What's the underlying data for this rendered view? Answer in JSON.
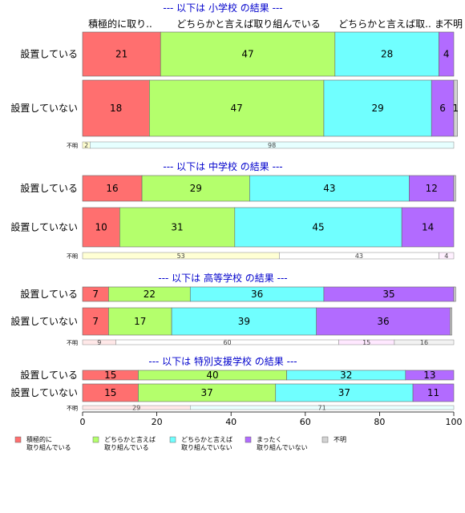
{
  "chart_data": {
    "type": "bar",
    "orientation": "horizontal",
    "stacked": true,
    "xlim": [
      0,
      100
    ],
    "x_ticks": [
      "0",
      "20",
      "40",
      "60",
      "80",
      "100"
    ],
    "legend_position": "bottom",
    "colors": {
      "積極的に取り組んでいる": "#ff6f6f",
      "どちらかと言えば取り組んでいる": "#b4ff6c",
      "どちらかと言えば取り組んでいない": "#70ffff",
      "まったく取り組んでいない": "#b26bff",
      "不明": "#d3d3d3"
    },
    "top_header": [
      "積極的に取り..",
      "どちらかと言えば取り組んでいる",
      "どちらかと言えば取..",
      "ま",
      "不明"
    ],
    "legend": [
      {
        "key": "積極的に取り組んでいる",
        "line1": "積極的に",
        "line2": "取り組んでいる"
      },
      {
        "key": "どちらかと言えば取り組んでいる",
        "line1": "どちらかと言えば",
        "line2": "取り組んでいる"
      },
      {
        "key": "どちらかと言えば取り組んでいない",
        "line1": "どちらかと言えば",
        "line2": "取り組んでいない"
      },
      {
        "key": "まったく取り組んでいない",
        "line1": "まったく",
        "line2": "取り組んでいない"
      },
      {
        "key": "不明",
        "line1": "不明",
        "line2": ""
      }
    ],
    "panels": [
      {
        "title": "--- 以下は 小学校 の結果 ---",
        "rows": [
          {
            "label": "設置している",
            "values": [
              21,
              47,
              28,
              4,
              0
            ],
            "value_labels": [
              "21",
              "47",
              "28",
              "4",
              ""
            ]
          },
          {
            "label": "設置していない",
            "values": [
              18,
              47,
              29,
              6,
              1
            ],
            "value_labels": [
              "18",
              "47",
              "29",
              "6",
              "1"
            ]
          }
        ],
        "unknown": {
          "label": "不明",
          "values": [
            2,
            98
          ],
          "value_labels": [
            "2",
            "98"
          ]
        }
      },
      {
        "title": "--- 以下は 中学校 の結果 ---",
        "rows": [
          {
            "label": "設置している",
            "values": [
              16,
              29,
              43,
              12,
              0.5
            ],
            "value_labels": [
              "16",
              "29",
              "43",
              "12",
              ""
            ]
          },
          {
            "label": "設置していない",
            "values": [
              10,
              31,
              45,
              14,
              0
            ],
            "value_labels": [
              "10",
              "31",
              "45",
              "14",
              ""
            ]
          }
        ],
        "unknown": {
          "label": "不明",
          "values": [
            53,
            43,
            4
          ],
          "value_labels": [
            "53",
            "43",
            "4"
          ]
        }
      },
      {
        "title": "--- 以下は 高等学校 の結果 ---",
        "rows": [
          {
            "label": "設置している",
            "values": [
              7,
              22,
              36,
              35,
              0.5
            ],
            "value_labels": [
              "7",
              "22",
              "36",
              "35",
              ""
            ]
          },
          {
            "label": "設置していない",
            "values": [
              7,
              17,
              39,
              36,
              0.5
            ],
            "value_labels": [
              "7",
              "17",
              "39",
              "36",
              ""
            ]
          }
        ],
        "unknown": {
          "label": "不明",
          "values": [
            9,
            60,
            15,
            16
          ],
          "value_labels": [
            "9",
            "60",
            "15",
            "16"
          ]
        }
      },
      {
        "title": "--- 以下は 特別支援学校 の結果 ---",
        "rows": [
          {
            "label": "設置している",
            "values": [
              15,
              40,
              32,
              13,
              0
            ],
            "value_labels": [
              "15",
              "40",
              "32",
              "13",
              ""
            ]
          },
          {
            "label": "設置していない",
            "values": [
              15,
              37,
              37,
              11,
              0
            ],
            "value_labels": [
              "15",
              "37",
              "37",
              "11",
              ""
            ]
          }
        ],
        "unknown": {
          "label": "不明",
          "values": [
            29,
            71
          ],
          "value_labels": [
            "29",
            "71"
          ]
        }
      }
    ]
  }
}
